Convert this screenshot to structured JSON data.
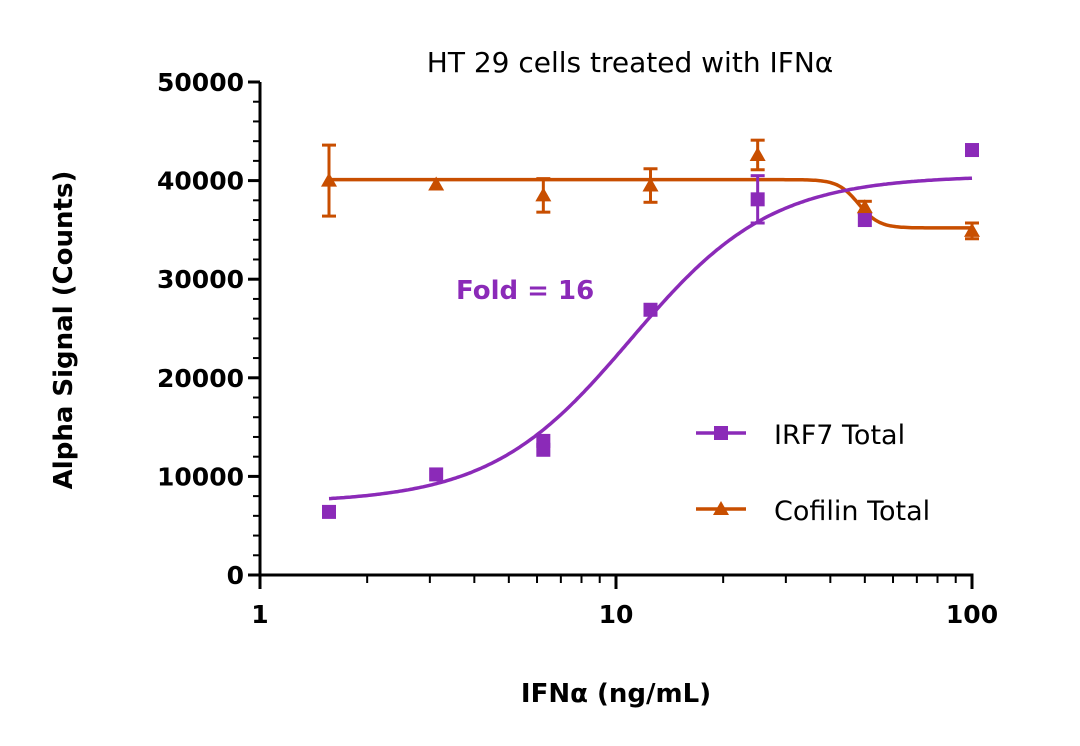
{
  "chart_data": {
    "type": "scatter",
    "title": "HT 29 cells treated with IFNα",
    "xlabel": "IFNα (ng/mL)",
    "ylabel": "Alpha Signal (Counts)",
    "xscale": "log",
    "xlim": [
      1,
      100
    ],
    "ylim": [
      0,
      50000
    ],
    "xticks": [
      "1",
      "10",
      "100"
    ],
    "yticks": [
      "0",
      "10000",
      "20000",
      "30000",
      "40000",
      "50000"
    ],
    "grid": false,
    "legend_position": "bottom-right",
    "annotation": {
      "text": "Fold = 16",
      "color": "#8B2AB8"
    },
    "series": [
      {
        "name": "IRF7 Total",
        "color": "#8B2AB8",
        "marker": "square",
        "points": [
          {
            "x": 1.5625,
            "y": 6400
          },
          {
            "x": 3.125,
            "y": 10200
          },
          {
            "x": 6.25,
            "y": 13600
          },
          {
            "x": 6.25,
            "y": 12700
          },
          {
            "x": 12.5,
            "y": 26900
          },
          {
            "x": 25,
            "y": 38100,
            "err": 2400
          },
          {
            "x": 50,
            "y": 36000
          },
          {
            "x": 100,
            "y": 43100
          }
        ],
        "fit": {
          "bottom": 7300,
          "top": 40500,
          "ec50": 11,
          "hill": 2.2
        }
      },
      {
        "name": "Cofilin Total",
        "color": "#C84E00",
        "marker": "triangle",
        "points": [
          {
            "x": 1.5625,
            "y": 40000,
            "err": 3600
          },
          {
            "x": 3.125,
            "y": 39600
          },
          {
            "x": 6.25,
            "y": 38500,
            "err": 1700
          },
          {
            "x": 12.5,
            "y": 39500,
            "err": 1700
          },
          {
            "x": 25,
            "y": 42600,
            "err": 1500
          },
          {
            "x": 50,
            "y": 37300,
            "err": 600
          },
          {
            "x": 100,
            "y": 34900,
            "err": 800
          }
        ],
        "fit": {
          "bottom": 35200,
          "top": 40100,
          "ec50": 48,
          "hill": -15
        }
      }
    ]
  }
}
